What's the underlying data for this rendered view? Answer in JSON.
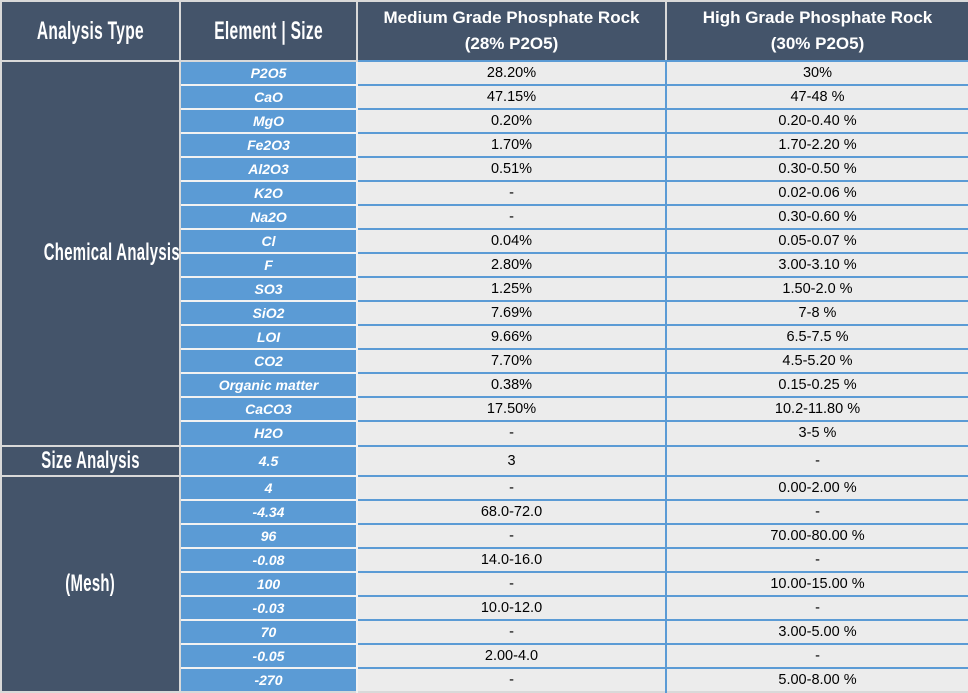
{
  "table": {
    "header": {
      "analysis_type": "Analysis Type",
      "element_size": "Element | Size",
      "medium_line1": "Medium Grade Phosphate Rock",
      "medium_line2": "(28% P2O5)",
      "high_line1": "High Grade Phosphate Rock",
      "high_line2": "(30% P2O5)"
    },
    "sections": [
      {
        "label": "Chemical Analysis",
        "start": 0,
        "span": 16
      },
      {
        "label": "Size Analysis",
        "start": 16,
        "span": 1
      },
      {
        "label": "(Mesh)",
        "start": 17,
        "span": 9
      }
    ],
    "rows": [
      {
        "element": "P2O5",
        "medium": "28.20%",
        "high": "30%"
      },
      {
        "element": "CaO",
        "medium": "47.15%",
        "high": "47-48 %"
      },
      {
        "element": "MgO",
        "medium": "0.20%",
        "high": "0.20-0.40 %"
      },
      {
        "element": "Fe2O3",
        "medium": "1.70%",
        "high": "1.70-2.20 %"
      },
      {
        "element": "Al2O3",
        "medium": "0.51%",
        "high": "0.30-0.50 %"
      },
      {
        "element": "K2O",
        "medium": "-",
        "high": "0.02-0.06 %"
      },
      {
        "element": "Na2O",
        "medium": "-",
        "high": "0.30-0.60 %"
      },
      {
        "element": "Cl",
        "medium": "0.04%",
        "high": "0.05-0.07 %"
      },
      {
        "element": "F",
        "medium": "2.80%",
        "high": "3.00-3.10 %"
      },
      {
        "element": "SO3",
        "medium": "1.25%",
        "high": "1.50-2.0 %"
      },
      {
        "element": "SiO2",
        "medium": "7.69%",
        "high": "7-8 %"
      },
      {
        "element": "LOI",
        "medium": "9.66%",
        "high": "6.5-7.5 %"
      },
      {
        "element": "CO2",
        "medium": "7.70%",
        "high": "4.5-5.20 %"
      },
      {
        "element": "Organic matter",
        "medium": "0.38%",
        "high": "0.15-0.25 %"
      },
      {
        "element": "CaCO3",
        "medium": "17.50%",
        "high": "10.2-11.80 %"
      },
      {
        "element": "H2O",
        "medium": "-",
        "high": "3-5 %"
      },
      {
        "element": "4.5",
        "medium": "3",
        "high": "-"
      },
      {
        "element": "4",
        "medium": "-",
        "high": "0.00-2.00 %"
      },
      {
        "element": "-4.34",
        "medium": "68.0-72.0",
        "high": "-"
      },
      {
        "element": "96",
        "medium": "-",
        "high": "70.00-80.00 %"
      },
      {
        "element": "-0.08",
        "medium": "14.0-16.0",
        "high": "-"
      },
      {
        "element": "100",
        "medium": "-",
        "high": "10.00-15.00 %"
      },
      {
        "element": "-0.03",
        "medium": "10.0-12.0",
        "high": "-"
      },
      {
        "element": "70",
        "medium": "-",
        "high": "3.00-5.00 %"
      },
      {
        "element": "-0.05",
        "medium": "2.00-4.0",
        "high": "-"
      },
      {
        "element": "-270",
        "medium": "-",
        "high": "5.00-8.00 %"
      }
    ]
  },
  "colors": {
    "dark_slate": "#44546A",
    "accent_blue": "#5B9BD5",
    "value_cell_bg": "#ECECEC",
    "grid_gray": "#D9D9D9",
    "grid_white": "#F2F2F2",
    "header_text": "#FFFFFF",
    "value_text": "#000000"
  }
}
